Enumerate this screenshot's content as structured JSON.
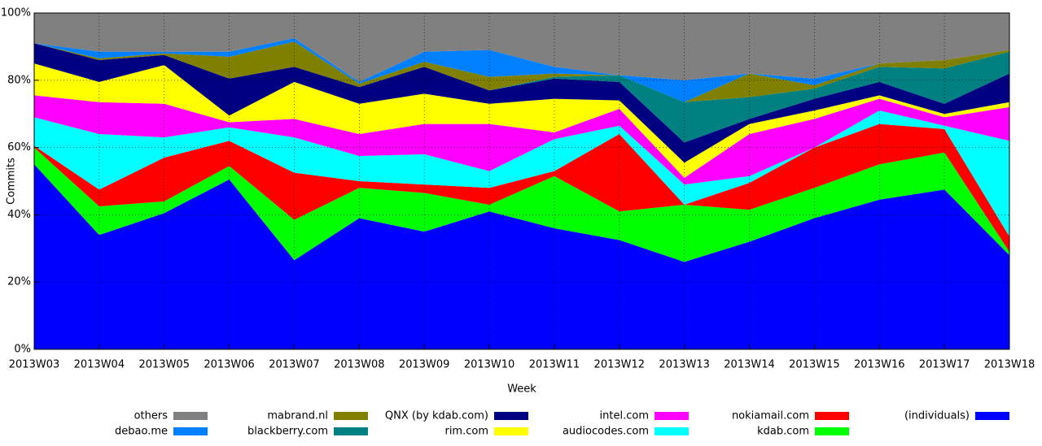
{
  "chart_data": {
    "type": "stacked-area",
    "x_label": "Week",
    "y_label": "Commits",
    "categories": [
      "2013W03",
      "2013W04",
      "2013W05",
      "2013W06",
      "2013W07",
      "2013W08",
      "2013W09",
      "2013W10",
      "2013W11",
      "2013W12",
      "2013W13",
      "2013W14",
      "2013W15",
      "2013W16",
      "2013W17",
      "2013W18"
    ],
    "ylim": [
      0,
      100
    ],
    "yticks": [
      {
        "value": 0,
        "label": "0%"
      },
      {
        "value": 20,
        "label": "20%"
      },
      {
        "value": 40,
        "label": "40%"
      },
      {
        "value": 60,
        "label": "60%"
      },
      {
        "value": 80,
        "label": "80%"
      },
      {
        "value": 100,
        "label": "100%"
      }
    ],
    "grid": true,
    "legend": "bottom",
    "series": [
      {
        "name": "others",
        "color": "#808080",
        "values": [
          9,
          11.5,
          11.5,
          11.5,
          7.5,
          20.5,
          11.5,
          11,
          16,
          18.5,
          20,
          18,
          19.5,
          15,
          14,
          11
        ]
      },
      {
        "name": "debao.me",
        "color": "#0080ff",
        "values": [
          0,
          2,
          0.5,
          1.5,
          1,
          0.5,
          3,
          8,
          2,
          0,
          6.5,
          0,
          2,
          0,
          0,
          0
        ]
      },
      {
        "name": "mabrand.nl",
        "color": "#808000",
        "values": [
          0,
          0.5,
          0.5,
          6.5,
          7.5,
          1,
          1.5,
          4,
          1,
          0,
          0,
          7,
          1,
          1,
          2.5,
          0.5
        ]
      },
      {
        "name": "blackberry.com",
        "color": "#008080",
        "values": [
          0,
          0,
          0,
          0,
          0,
          0,
          0,
          0,
          0.5,
          2,
          12,
          6.5,
          3,
          4.5,
          10.5,
          6.5
        ]
      },
      {
        "name": "QNX (by kdab.com)",
        "color": "#000080",
        "values": [
          6,
          6.5,
          3,
          11,
          4.5,
          5,
          8,
          4,
          6,
          5.5,
          6,
          1.5,
          3.5,
          4,
          3,
          8.5
        ]
      },
      {
        "name": "rim.com",
        "color": "#ffff00",
        "values": [
          9.5,
          6,
          11.5,
          2,
          11,
          9,
          9,
          6,
          10,
          2.5,
          4.5,
          3,
          2.5,
          1,
          1,
          1.5
        ]
      },
      {
        "name": "intel.com",
        "color": "#ff00ff",
        "values": [
          6.5,
          9.5,
          10,
          1.5,
          5.5,
          6.5,
          9,
          14,
          2,
          5,
          2,
          12.5,
          8.5,
          3.5,
          2.5,
          10
        ]
      },
      {
        "name": "audiocodes.com",
        "color": "#00ffff",
        "values": [
          8.5,
          16.5,
          6,
          4,
          10.5,
          7.5,
          9,
          5,
          9.5,
          2.5,
          6,
          2,
          0,
          4,
          1,
          28.5
        ]
      },
      {
        "name": "nokiamail.com",
        "color": "#ff0000",
        "values": [
          0.5,
          5,
          13,
          7.5,
          14,
          2,
          2.5,
          5,
          1.5,
          23,
          0,
          8,
          12,
          12,
          7,
          4.5
        ]
      },
      {
        "name": "kdab.com",
        "color": "#00ff00",
        "values": [
          5,
          8.5,
          3.5,
          4,
          12,
          9,
          11.5,
          2,
          15.5,
          8.5,
          17,
          9.5,
          9,
          10.5,
          11,
          1
        ]
      },
      {
        "name": "(individuals)",
        "color": "#0000ff",
        "values": [
          55,
          34,
          40.5,
          50.5,
          26.5,
          39,
          35,
          41,
          36,
          32.5,
          26,
          32,
          39,
          44.5,
          47.5,
          28
        ]
      }
    ]
  }
}
